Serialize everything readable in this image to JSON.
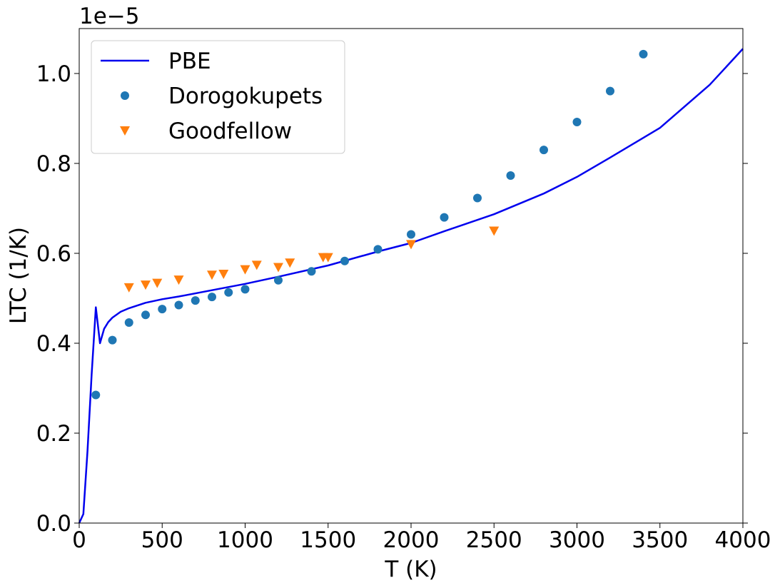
{
  "chart_data": {
    "type": "scatter",
    "xlabel": "T (K)",
    "ylabel": "LTC (1/K)",
    "offset_label": "1e−5",
    "xlim": [
      0,
      4000
    ],
    "ylim": [
      0.0,
      1.1
    ],
    "xticks": [
      "0",
      "500",
      "1000",
      "1500",
      "2000",
      "2500",
      "3000",
      "3500",
      "4000"
    ],
    "yticks": [
      "0.0",
      "0.2",
      "0.4",
      "0.6",
      "0.8",
      "1.0"
    ],
    "grid": false,
    "legend_position": "upper-left",
    "series": [
      {
        "name": "PBE",
        "kind": "line",
        "color": "#0000ee",
        "x": [
          0,
          25,
          50,
          75,
          100,
          125,
          150,
          175,
          200,
          250,
          300,
          400,
          500,
          600,
          800,
          1000,
          1200,
          1500,
          1800,
          2000,
          2200,
          2500,
          2800,
          3000,
          3200,
          3500,
          3800,
          4000
        ],
        "y": [
          0.0,
          0.02,
          0.16,
          0.33,
          0.48,
          0.4,
          0.432,
          0.447,
          0.457,
          0.47,
          0.478,
          0.49,
          0.498,
          0.504,
          0.518,
          0.532,
          0.548,
          0.573,
          0.604,
          0.623,
          0.649,
          0.687,
          0.733,
          0.77,
          0.813,
          0.879,
          0.975,
          1.055
        ]
      },
      {
        "name": "Dorogokupets",
        "kind": "marker-circle",
        "color": "#1f77b4",
        "x": [
          100,
          200,
          300,
          400,
          500,
          600,
          700,
          800,
          900,
          1000,
          1200,
          1400,
          1600,
          1800,
          2000,
          2200,
          2400,
          2600,
          2800,
          3000,
          3200,
          3400
        ],
        "y": [
          0.285,
          0.407,
          0.446,
          0.463,
          0.476,
          0.485,
          0.495,
          0.503,
          0.513,
          0.52,
          0.54,
          0.56,
          0.583,
          0.609,
          0.642,
          0.68,
          0.723,
          0.773,
          0.83,
          0.892,
          0.961,
          1.043
        ]
      },
      {
        "name": "Goodfellow",
        "kind": "marker-triangle-down",
        "color": "#ff7f0e",
        "x": [
          300,
          400,
          470,
          600,
          800,
          870,
          1000,
          1070,
          1200,
          1270,
          1470,
          1500,
          2000,
          2500
        ],
        "y": [
          0.524,
          0.53,
          0.534,
          0.541,
          0.552,
          0.554,
          0.564,
          0.574,
          0.569,
          0.579,
          0.591,
          0.591,
          0.62,
          0.65
        ]
      }
    ]
  }
}
